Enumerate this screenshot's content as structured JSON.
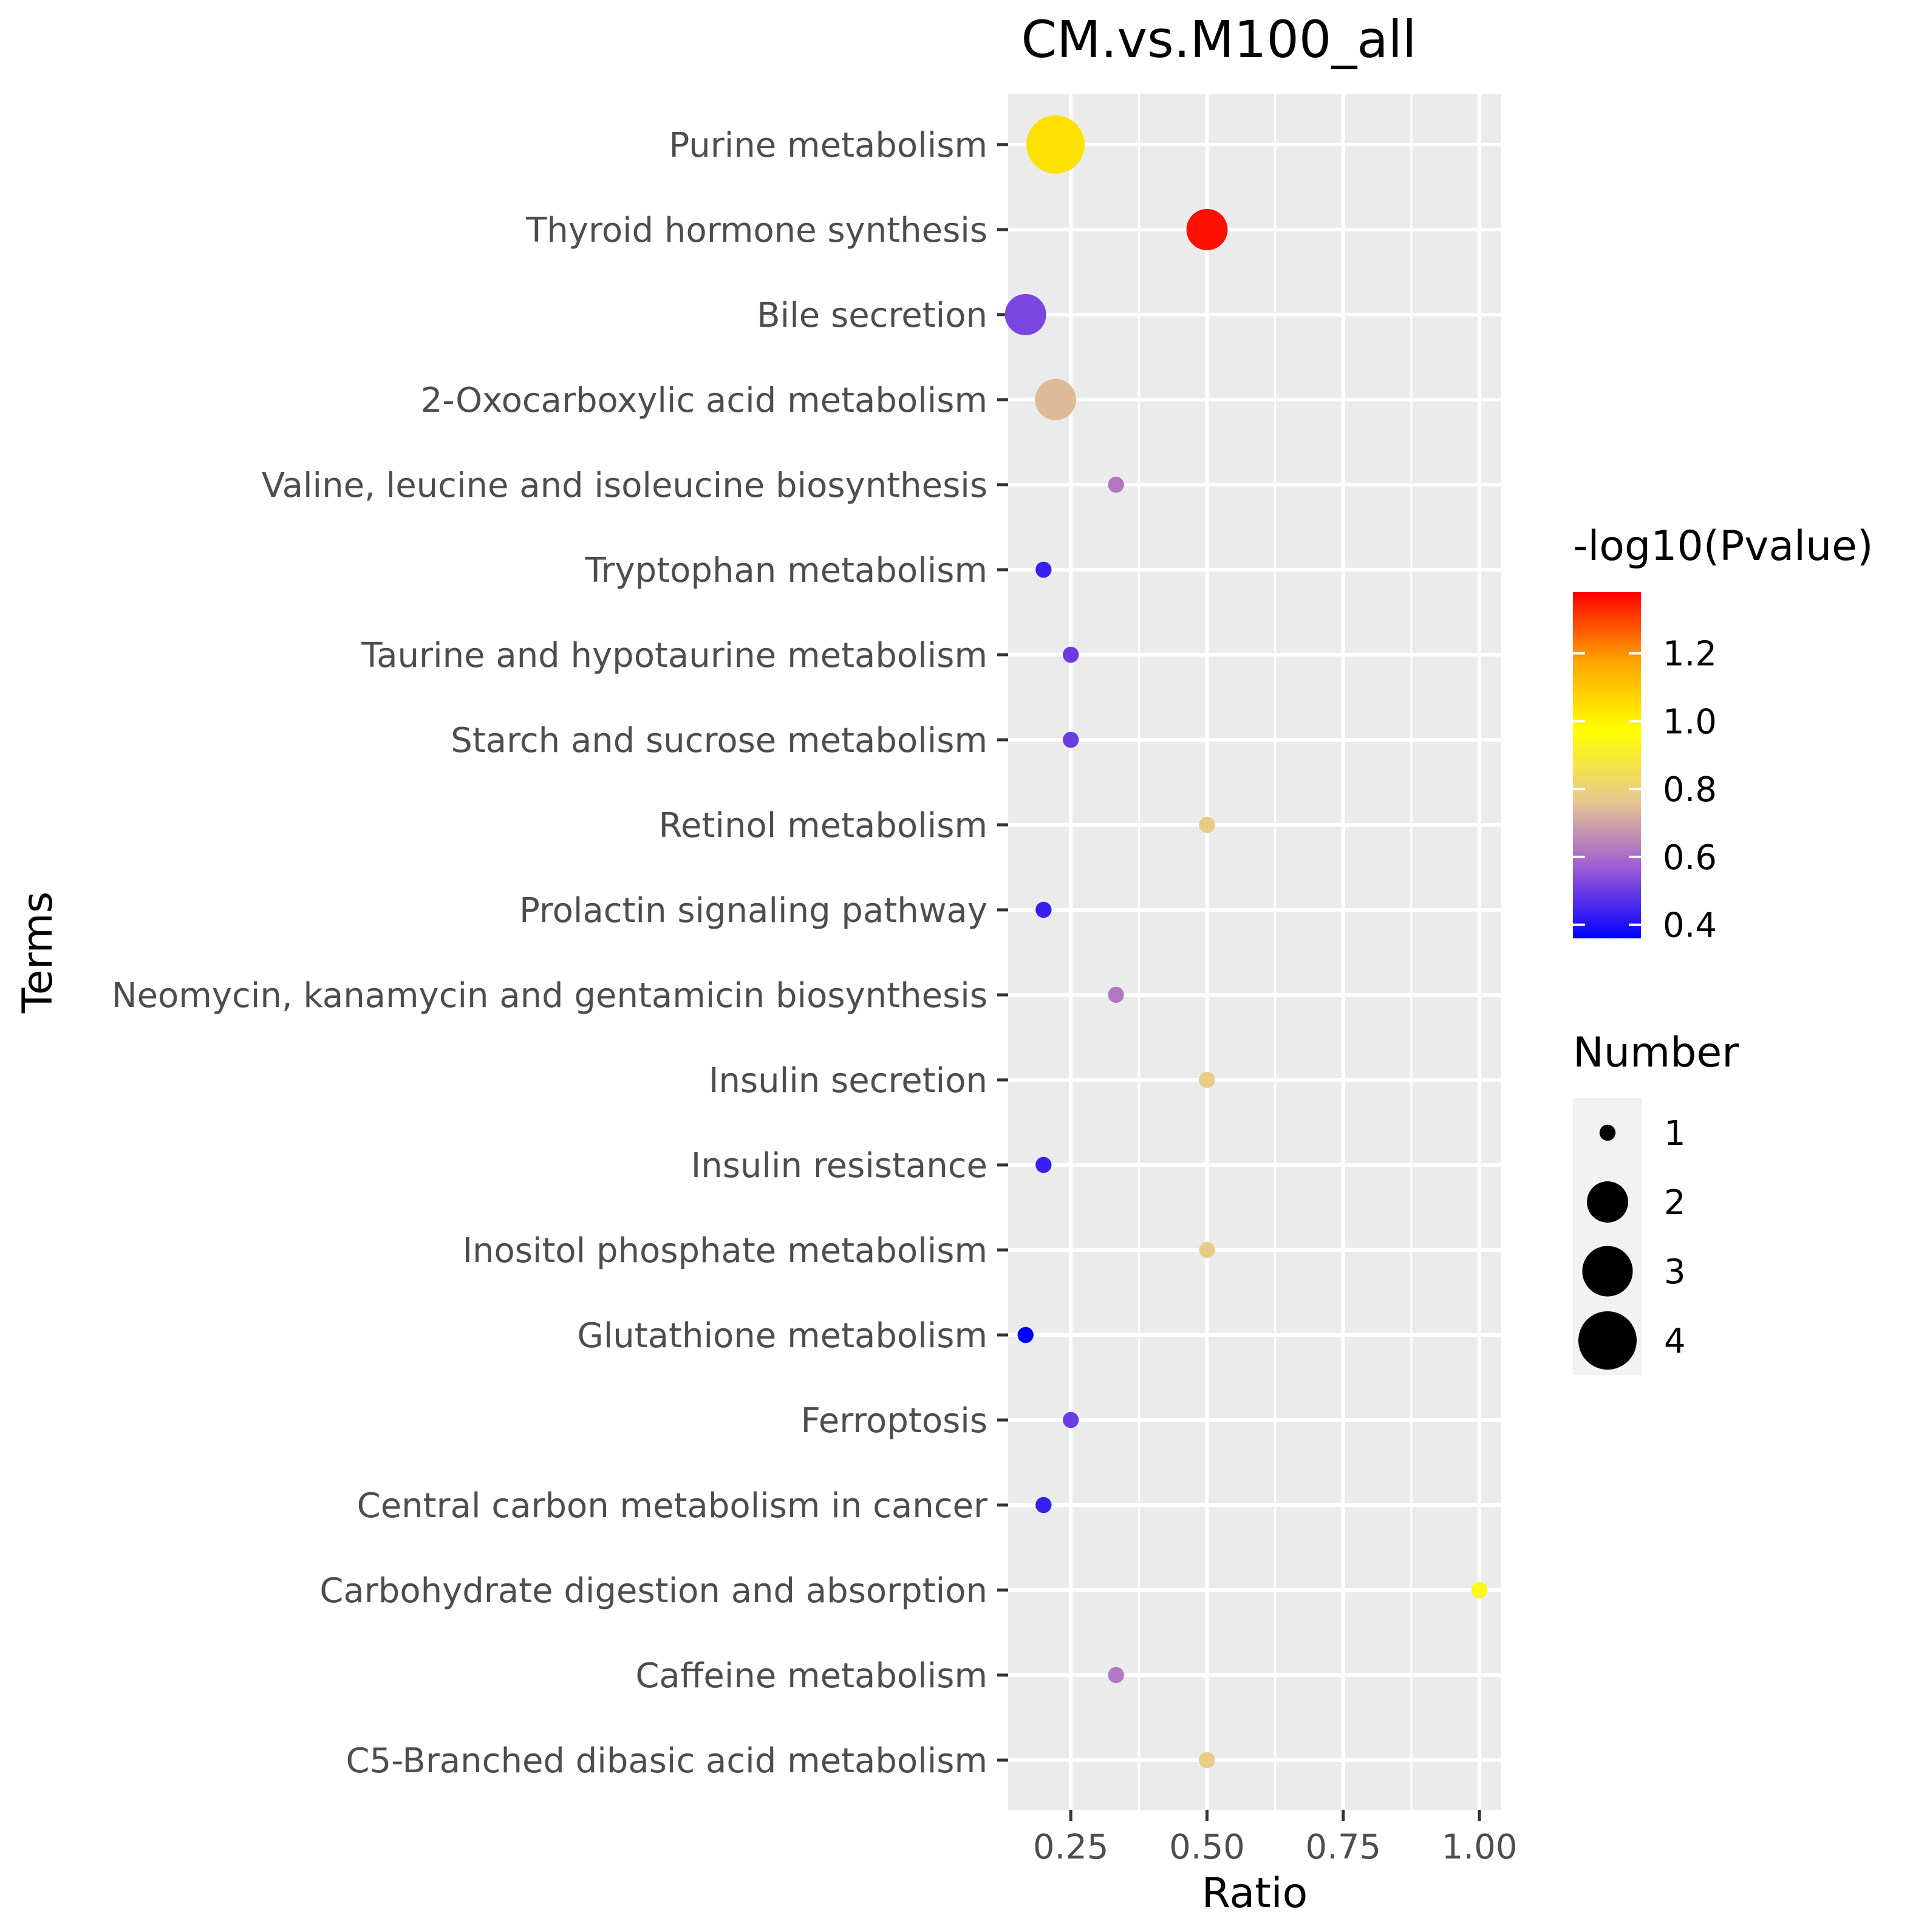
{
  "chart_data": {
    "type": "scatter",
    "title": "CM.vs.M100_all",
    "xlabel": "Ratio",
    "ylabel": "Terms",
    "xlim": [
      0.135,
      1.04
    ],
    "xticks": [
      0.25,
      0.5,
      0.75,
      1.0
    ],
    "xtick_labels": [
      "0.25",
      "0.50",
      "0.75",
      "1.00"
    ],
    "grid": true,
    "panel_background": "#ebebeb",
    "categories": [
      "Purine metabolism",
      "Thyroid hormone synthesis",
      "Bile secretion",
      "2-Oxocarboxylic acid metabolism",
      "Valine, leucine and isoleucine biosynthesis",
      "Tryptophan metabolism",
      "Taurine and hypotaurine metabolism",
      "Starch and sucrose metabolism",
      "Retinol metabolism",
      "Prolactin signaling pathway",
      "Neomycin, kanamycin and gentamicin biosynthesis",
      "Insulin secretion",
      "Insulin resistance",
      "Inositol phosphate metabolism",
      "Glutathione metabolism",
      "Ferroptosis",
      "Central carbon metabolism in cancer",
      "Carbohydrate digestion and absorption",
      "Caffeine metabolism",
      "C5-Branched dibasic acid metabolism"
    ],
    "ratio": [
      0.222,
      0.5,
      0.167,
      0.222,
      0.333,
      0.2,
      0.25,
      0.25,
      0.5,
      0.2,
      0.333,
      0.5,
      0.2,
      0.5,
      0.167,
      0.25,
      0.2,
      1.0,
      0.333,
      0.5
    ],
    "number": [
      4,
      2,
      2,
      2,
      1,
      1,
      1,
      1,
      1,
      1,
      1,
      1,
      1,
      1,
      1,
      1,
      1,
      1,
      1,
      1
    ],
    "neg_log10_pvalue": [
      1.04,
      1.36,
      0.52,
      0.74,
      0.62,
      0.43,
      0.5,
      0.5,
      0.78,
      0.43,
      0.62,
      0.78,
      0.43,
      0.78,
      0.36,
      0.5,
      0.43,
      0.95,
      0.62,
      0.78
    ],
    "legend": {
      "color_title": "-log10(Pvalue)",
      "color_range": [
        0.36,
        1.38
      ],
      "color_ticks": [
        0.4,
        0.6,
        0.8,
        1.0,
        1.2
      ],
      "color_tick_labels": [
        "0.4",
        "0.6",
        "0.8",
        "1.0",
        "1.2"
      ],
      "color_stops": [
        "#0000ff",
        "#9b59d6",
        "#e8c98e",
        "#ffff00",
        "#ffa500",
        "#ff0000"
      ],
      "size_title": "Number",
      "size_values": [
        1,
        2,
        3,
        4
      ],
      "size_labels": [
        "1",
        "2",
        "3",
        "4"
      ],
      "placement": "right"
    }
  }
}
